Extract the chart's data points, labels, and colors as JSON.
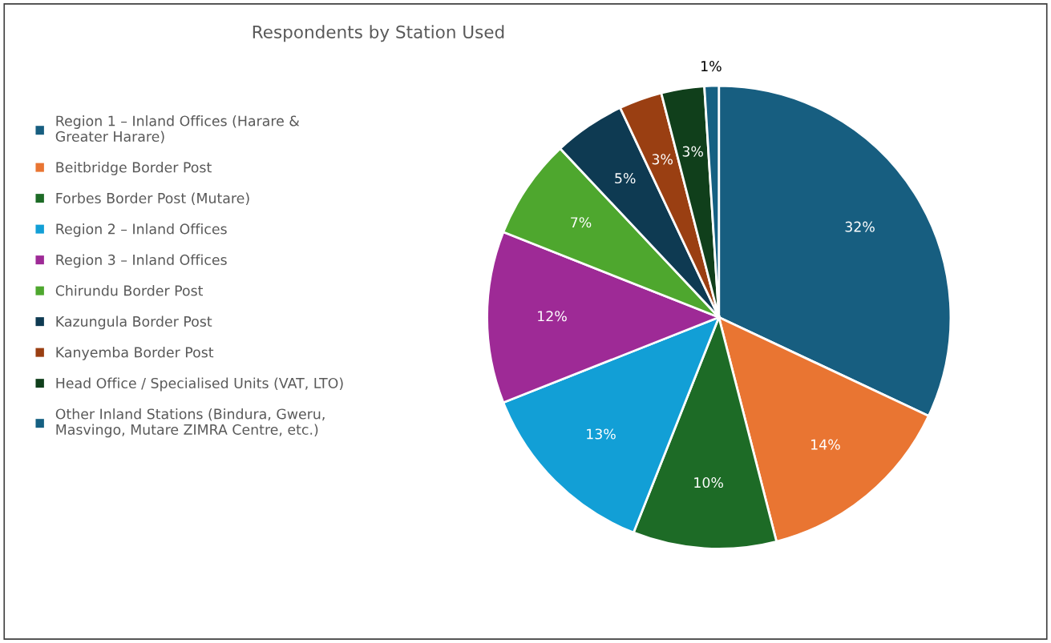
{
  "chart_data": {
    "type": "pie",
    "title": "Respondents by Station Used",
    "categories": [
      "Region 1 – Inland Offices (Harare &\nGreater Harare)",
      "Beitbridge Border Post",
      "Forbes Border Post (Mutare)",
      "Region 2 – Inland Offices",
      "Region 3 – Inland Offices",
      "Chirundu Border Post",
      "Kazungula Border Post",
      "Kanyemba Border Post",
      "Head Office / Specialised Units (VAT, LTO)",
      "Other Inland Stations (Bindura, Gweru,\nMasvingo, Mutare ZIMRA Centre, etc.)"
    ],
    "values": [
      32,
      14,
      10,
      13,
      12,
      7,
      5,
      3,
      3,
      1
    ],
    "value_labels": [
      "32%",
      "14%",
      "10%",
      "13%",
      "12%",
      "7%",
      "5%",
      "3%",
      "3%",
      "1%"
    ],
    "colors": [
      "#175e80",
      "#e97532",
      "#1d6b26",
      "#129fd6",
      "#9e2a96",
      "#4ea72e",
      "#0e3a52",
      "#9a3f12",
      "#103f1b",
      "#156082"
    ],
    "legend": "left"
  }
}
